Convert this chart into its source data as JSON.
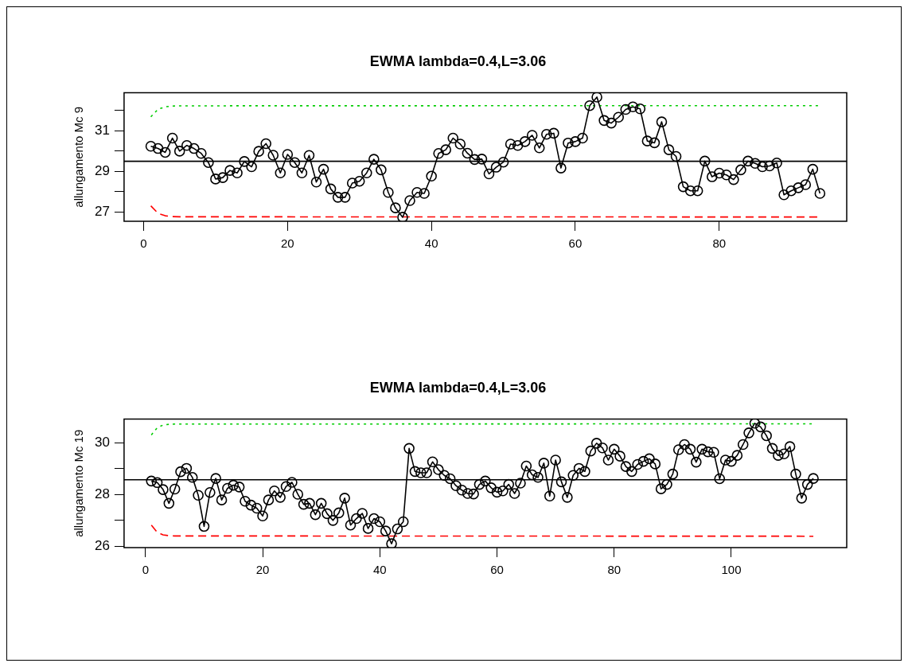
{
  "chart_data": [
    {
      "type": "line",
      "title": "EWMA lambda=0.4,L=3.06",
      "ylabel": "allungamento Mc 9",
      "x": [
        1,
        2,
        3,
        4,
        5,
        6,
        7,
        8,
        9,
        10,
        11,
        12,
        13,
        14,
        15,
        16,
        17,
        18,
        19,
        20,
        21,
        22,
        23,
        24,
        25,
        26,
        27,
        28,
        29,
        30,
        31,
        32,
        33,
        34,
        35,
        36,
        37,
        38,
        39,
        40,
        41,
        42,
        43,
        44,
        45,
        46,
        47,
        48,
        49,
        50,
        51,
        52,
        53,
        54,
        55,
        56,
        57,
        58,
        59,
        60,
        61,
        62,
        63,
        64,
        65,
        66,
        67,
        68,
        69,
        70,
        71,
        72,
        73,
        74,
        75,
        76,
        77,
        78,
        79,
        80,
        81,
        82,
        83,
        84,
        85,
        86,
        87,
        88,
        89,
        90,
        91,
        92,
        93,
        94
      ],
      "xlim": [
        -2.72,
        97.72
      ],
      "xticks": [
        0,
        20,
        40,
        60,
        80
      ],
      "ylim": [
        26.55,
        32.87
      ],
      "yticks": [
        27,
        {
          "value": 28,
          "label": null
        },
        29,
        {
          "value": 30,
          "label": null
        },
        31,
        {
          "value": 32,
          "label": null
        }
      ],
      "series": [
        {
          "color": "#000000",
          "marker": "circle",
          "line_style": "solid",
          "values": [
            30.24,
            30.13,
            29.94,
            30.64,
            30.0,
            30.28,
            30.13,
            29.89,
            29.44,
            28.63,
            28.7,
            29.05,
            28.93,
            29.49,
            29.23,
            29.99,
            30.37,
            29.8,
            28.93,
            29.84,
            29.44,
            28.93,
            29.79,
            28.48,
            29.11,
            28.14,
            27.73,
            27.73,
            28.43,
            28.52,
            28.93,
            29.6,
            29.08,
            27.97,
            27.21,
            26.75,
            27.57,
            27.97,
            27.92,
            28.77,
            29.89,
            30.07,
            30.64,
            30.35,
            29.9,
            29.59,
            29.61,
            28.88,
            29.21,
            29.46,
            30.35,
            30.28,
            30.47,
            30.78,
            30.16,
            30.83,
            30.88,
            29.17,
            30.4,
            30.47,
            30.64,
            32.24,
            32.66,
            31.51,
            31.38,
            31.67,
            32.05,
            32.18,
            32.08,
            30.5,
            30.41,
            31.44,
            30.07,
            29.74,
            28.25,
            28.05,
            28.05,
            29.51,
            28.74,
            28.92,
            28.83,
            28.6,
            29.08,
            29.51,
            29.4,
            29.23,
            29.27,
            29.42,
            27.85,
            28.05,
            28.2,
            28.35,
            29.11,
            27.92
          ]
        },
        {
          "color": "#00cd00",
          "marker": "none",
          "line_style": "dotted",
          "x": [
            1,
            2,
            3,
            4,
            5,
            94
          ],
          "values": [
            31.69,
            32.06,
            32.18,
            32.22,
            32.23,
            32.24
          ]
        },
        {
          "color": "#ff0000",
          "marker": "none",
          "line_style": "dashed",
          "x": [
            1,
            2,
            3,
            4,
            5,
            94
          ],
          "values": [
            27.31,
            26.94,
            26.82,
            26.78,
            26.77,
            26.76
          ]
        }
      ],
      "ref_lines": [
        {
          "axis": "y",
          "value": 29.5,
          "color": "#000000"
        }
      ]
    },
    {
      "type": "line",
      "title": "EWMA lambda=0.4,L=3.06",
      "ylabel": "allungamento Mc 19",
      "x": [
        1,
        2,
        3,
        4,
        5,
        6,
        7,
        8,
        9,
        10,
        11,
        12,
        13,
        14,
        15,
        16,
        17,
        18,
        19,
        20,
        21,
        22,
        23,
        24,
        25,
        26,
        27,
        28,
        29,
        30,
        31,
        32,
        33,
        34,
        35,
        36,
        37,
        38,
        39,
        40,
        41,
        42,
        43,
        44,
        45,
        46,
        47,
        48,
        49,
        50,
        51,
        52,
        53,
        54,
        55,
        56,
        57,
        58,
        59,
        60,
        61,
        62,
        63,
        64,
        65,
        66,
        67,
        68,
        69,
        70,
        71,
        72,
        73,
        74,
        75,
        76,
        77,
        78,
        79,
        80,
        81,
        82,
        83,
        84,
        85,
        86,
        87,
        88,
        89,
        90,
        91,
        92,
        93,
        94,
        95,
        96,
        97,
        98,
        99,
        100,
        101,
        102,
        103,
        104,
        105,
        106,
        107,
        108,
        109,
        110,
        111,
        112,
        113,
        114
      ],
      "xlim": [
        -3.66,
        119.7
      ],
      "xticks": [
        0,
        20,
        40,
        60,
        80,
        100
      ],
      "ylim": [
        25.95,
        30.91
      ],
      "yticks": [
        26,
        {
          "value": 27,
          "label": null
        },
        28,
        {
          "value": 29,
          "label": null
        },
        30
      ],
      "series": [
        {
          "color": "#000000",
          "marker": "circle",
          "line_style": "solid",
          "values": [
            28.52,
            28.46,
            28.19,
            27.66,
            28.21,
            28.88,
            29.01,
            28.66,
            27.97,
            26.77,
            28.08,
            28.62,
            27.79,
            28.24,
            28.36,
            28.29,
            27.74,
            27.59,
            27.47,
            27.17,
            27.79,
            28.14,
            27.89,
            28.31,
            28.47,
            28.01,
            27.62,
            27.66,
            27.22,
            27.66,
            27.26,
            27.0,
            27.29,
            27.86,
            26.82,
            27.07,
            27.27,
            26.69,
            27.07,
            26.95,
            26.59,
            26.1,
            26.67,
            26.95,
            29.78,
            28.89,
            28.84,
            28.84,
            29.26,
            28.96,
            28.74,
            28.61,
            28.34,
            28.17,
            28.04,
            28.02,
            28.39,
            28.52,
            28.26,
            28.09,
            28.14,
            28.39,
            28.04,
            28.44,
            29.1,
            28.76,
            28.66,
            29.21,
            27.94,
            29.33,
            28.49,
            27.89,
            28.74,
            29.01,
            28.89,
            29.68,
            29.98,
            29.8,
            29.33,
            29.75,
            29.48,
            29.08,
            28.89,
            29.16,
            29.28,
            29.38,
            29.18,
            28.22,
            28.39,
            28.79,
            29.73,
            29.93,
            29.75,
            29.25,
            29.75,
            29.65,
            29.63,
            28.61,
            29.33,
            29.28,
            29.51,
            29.93,
            30.38,
            30.75,
            30.61,
            30.27,
            29.78,
            29.51,
            29.57,
            29.85,
            28.79,
            27.86,
            28.39,
            28.62
          ]
        },
        {
          "color": "#00cd00",
          "marker": "none",
          "line_style": "dotted",
          "x": [
            1,
            2,
            3,
            4,
            5,
            114
          ],
          "values": [
            30.3,
            30.58,
            30.68,
            30.71,
            30.72,
            30.73
          ]
        },
        {
          "color": "#ff0000",
          "marker": "none",
          "line_style": "dashed",
          "x": [
            1,
            2,
            3,
            4,
            5,
            114
          ],
          "values": [
            26.82,
            26.54,
            26.44,
            26.41,
            26.4,
            26.39
          ]
        }
      ],
      "ref_lines": [
        {
          "axis": "y",
          "value": 28.57,
          "color": "#000000"
        }
      ]
    }
  ]
}
